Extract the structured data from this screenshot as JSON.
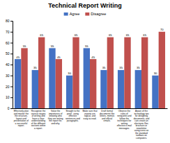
{
  "chart_data": {
    "type": "bar",
    "title": "Technical Report Writing",
    "categories": [
      "Effectively plan\nand master the\nthe structure,\nlayout and\npresentation of\na successful\nreport.",
      "Recognise the\nvarious stages\nof writing and\nhave a clear\nunderstanding\nof the different\nsections within\na report.",
      "Value the\nimportance of\nknowing who\nthey are writing\nthe report for,\nand why.",
      "Straight to the\npoint', using\neffective\nsentences and\nparagraphs.",
      "Make sure that\nreports are\nlogical, and\neasy-to-read.",
      "Draft formal\ndocuments like\nletters, memos\nand official\nemails.",
      "Observe the\nrules of\nnetiquette and\nfollow the\ntechniques for\nwriting\neffective e-mail\nmessages.",
      "Aware of the\ntechnology tips\nfor designing\ndocuments, and\ncan create an\nelectronic flier,\nbrochure or\nnewsletter\nusing icons on\nthe standard\ntoolbars on\ncomputers.",
      null
    ],
    "series": [
      {
        "name": "Agree",
        "color": "#4472C4",
        "values": [
          45,
          35,
          55,
          30,
          55,
          35,
          35,
          35,
          30
        ]
      },
      {
        "name": "Disagree",
        "color": "#C0504D",
        "values": [
          55,
          65,
          45,
          65,
          45,
          65,
          65,
          65,
          70
        ]
      }
    ],
    "ylim": [
      0,
      80
    ],
    "yticks": [
      0,
      10,
      20,
      30,
      40,
      50,
      60,
      70,
      80
    ],
    "grid": false,
    "legend": "top",
    "data_labels": true
  }
}
